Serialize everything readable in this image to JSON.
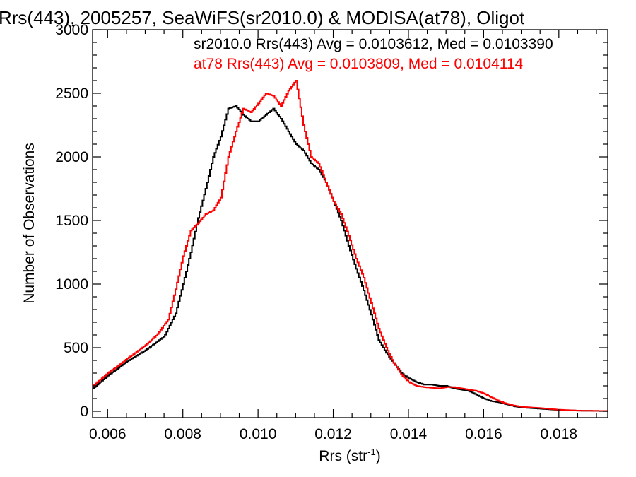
{
  "chart_data": {
    "type": "line",
    "title": "Rrs(443), 2005257, SeaWiFS(sr2010.0) & MODISA(at78), Oligot",
    "xlabel": "Rrs (str",
    "xlabel_sup": "-1",
    "xlabel_close": ")",
    "ylabel": "Number of Observations",
    "xlim": [
      0.0056,
      0.0193
    ],
    "ylim": [
      -50,
      3000
    ],
    "xticks": [
      0.006,
      0.008,
      0.01,
      0.012,
      0.014,
      0.016,
      0.018
    ],
    "xtick_labels": [
      "0.006",
      "0.008",
      "0.010",
      "0.012",
      "0.014",
      "0.016",
      "0.018"
    ],
    "yticks": [
      0,
      500,
      1000,
      1500,
      2000,
      2500,
      3000
    ],
    "ytick_labels": [
      "0",
      "500",
      "1000",
      "1500",
      "2000",
      "2500",
      "3000"
    ],
    "legend_placement": "top-right",
    "series": [
      {
        "name": "sr2010.0 Rrs(443) Avg = 0.0103612, Med = 0.0103390",
        "color": "#000000",
        "x": [
          0.0056,
          0.006,
          0.0065,
          0.007,
          0.0075,
          0.0078,
          0.008,
          0.0082,
          0.0084,
          0.0086,
          0.0088,
          0.009,
          0.0092,
          0.0094,
          0.0096,
          0.0098,
          0.01,
          0.0102,
          0.0104,
          0.0106,
          0.0108,
          0.011,
          0.0112,
          0.0114,
          0.0116,
          0.0118,
          0.012,
          0.0122,
          0.0124,
          0.0126,
          0.0128,
          0.013,
          0.0132,
          0.0134,
          0.0136,
          0.0138,
          0.014,
          0.0142,
          0.0144,
          0.0146,
          0.0148,
          0.015,
          0.0152,
          0.0154,
          0.0156,
          0.0158,
          0.016,
          0.0162,
          0.0164,
          0.0166,
          0.0168,
          0.017,
          0.0175,
          0.018,
          0.0185,
          0.0193
        ],
        "y": [
          180,
          280,
          390,
          480,
          590,
          770,
          1000,
          1250,
          1520,
          1750,
          2000,
          2160,
          2380,
          2400,
          2330,
          2280,
          2280,
          2330,
          2380,
          2300,
          2200,
          2100,
          2050,
          1950,
          1900,
          1800,
          1650,
          1500,
          1300,
          1120,
          950,
          760,
          560,
          460,
          380,
          300,
          260,
          230,
          210,
          210,
          200,
          200,
          180,
          170,
          160,
          130,
          100,
          80,
          70,
          55,
          40,
          30,
          20,
          10,
          5,
          2
        ]
      },
      {
        "name": "at78 Rrs(443) Avg = 0.0103809, Med = 0.0104114",
        "color": "#ff0000",
        "x": [
          0.0056,
          0.006,
          0.0065,
          0.007,
          0.0073,
          0.0076,
          0.0078,
          0.008,
          0.0082,
          0.0084,
          0.0086,
          0.0088,
          0.009,
          0.0092,
          0.0094,
          0.0096,
          0.0098,
          0.01,
          0.0102,
          0.0104,
          0.0106,
          0.0108,
          0.011,
          0.0112,
          0.0114,
          0.0116,
          0.0118,
          0.012,
          0.0122,
          0.0124,
          0.0126,
          0.0128,
          0.013,
          0.0132,
          0.0134,
          0.0136,
          0.0138,
          0.014,
          0.0142,
          0.0144,
          0.0146,
          0.0148,
          0.015,
          0.0152,
          0.0154,
          0.0156,
          0.0158,
          0.016,
          0.0162,
          0.0164,
          0.0166,
          0.0168,
          0.017,
          0.0175,
          0.018,
          0.0185,
          0.0193
        ],
        "y": [
          200,
          300,
          410,
          520,
          600,
          720,
          960,
          1220,
          1420,
          1480,
          1550,
          1580,
          1680,
          2000,
          2200,
          2380,
          2350,
          2420,
          2500,
          2480,
          2400,
          2520,
          2600,
          2250,
          2000,
          1950,
          1800,
          1650,
          1550,
          1380,
          1200,
          1050,
          850,
          650,
          500,
          380,
          290,
          230,
          200,
          190,
          185,
          180,
          190,
          190,
          180,
          170,
          160,
          140,
          110,
          80,
          60,
          45,
          35,
          25,
          12,
          5,
          2
        ]
      }
    ]
  }
}
